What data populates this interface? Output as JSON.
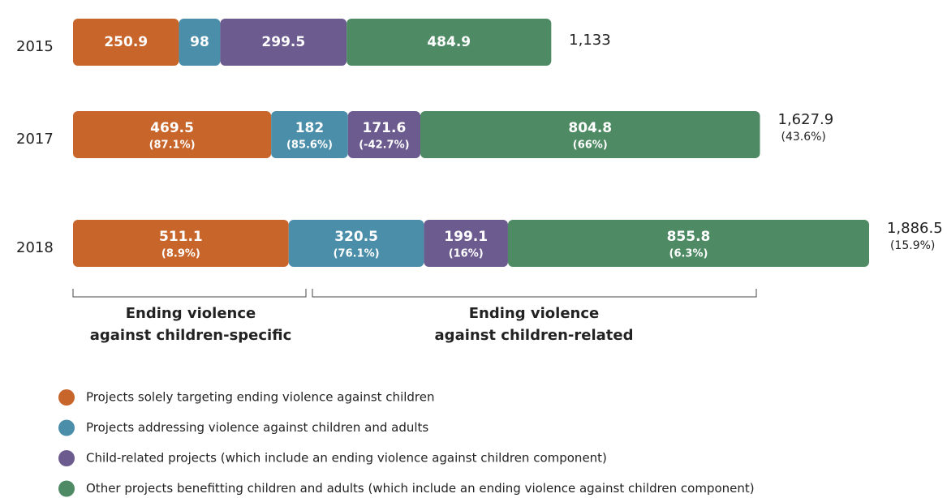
{
  "chart_data": {
    "type": "stacked-bar",
    "orientation": "horizontal",
    "categories": [
      "2015",
      "2017",
      "2018"
    ],
    "series": [
      {
        "name": "Projects solely targeting ending violence against children",
        "color": "#c8652b",
        "values": [
          250.9,
          469.5,
          511.1
        ],
        "change_labels": [
          null,
          "(87.1%)",
          "(8.9%)"
        ]
      },
      {
        "name": "Projects addressing violence against children and adults",
        "color": "#4b8ea9",
        "values": [
          98,
          182,
          320.5
        ],
        "change_labels": [
          null,
          "(85.6%)",
          "(76.1%)"
        ]
      },
      {
        "name": "Child-related projects (which include an ending violence against children component)",
        "color": "#6c5b8f",
        "values": [
          299.5,
          171.6,
          199.1
        ],
        "change_labels": [
          null,
          "(-42.7%)",
          "(16%)"
        ]
      },
      {
        "name": "Other projects benefitting children and adults (which include an ending violence against children component)",
        "color": "#4e8a63",
        "values": [
          484.9,
          804.8,
          855.8
        ],
        "change_labels": [
          null,
          "(66%)",
          "(6.3%)"
        ]
      }
    ],
    "totals": [
      1133,
      1627.9,
      1886.5
    ],
    "total_labels": [
      "1,133",
      "1,627.9",
      "1,886.5"
    ],
    "total_change_labels": [
      null,
      "(43.6%)",
      "(15.9%)"
    ],
    "annotations": [
      {
        "lines": [
          "Ending violence",
          "against children-specific"
        ]
      },
      {
        "lines": [
          "Ending violence",
          "against children-related"
        ]
      }
    ]
  }
}
